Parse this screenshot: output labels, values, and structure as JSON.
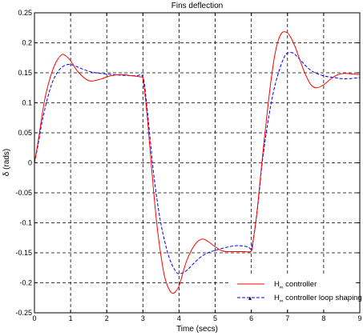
{
  "chart_data": {
    "type": "line",
    "title": "Fins deflection",
    "xlabel": "Time (secs)",
    "ylabel": "δ (rads)",
    "xlim": [
      0,
      9
    ],
    "ylim": [
      -0.25,
      0.25
    ],
    "xticks": [
      "0",
      "1",
      "2",
      "3",
      "4",
      "5",
      "6",
      "7",
      "8",
      "9"
    ],
    "yticks": [
      "-0.25",
      "-0.2",
      "-0.15",
      "-0.1",
      "-0.05",
      "0",
      "0.05",
      "0.1",
      "0.15",
      "0.2",
      "0.25"
    ],
    "grid": true,
    "legend_position": "bottom-right",
    "series": [
      {
        "name": "H∞ controller",
        "legend_main": "H",
        "legend_sub": "∞",
        "legend_rest": " controller",
        "color": "#ff0000",
        "dash": "solid",
        "x": [
          0,
          0.1,
          0.2,
          0.3,
          0.45,
          0.6,
          0.75,
          0.85,
          1.0,
          1.2,
          1.5,
          1.8,
          2.1,
          2.4,
          2.7,
          2.95,
          3.0,
          3.1,
          3.2,
          3.3,
          3.4,
          3.5,
          3.6,
          3.7,
          3.8,
          3.9,
          4.0,
          4.1,
          4.2,
          4.35,
          4.5,
          4.65,
          4.8,
          5.0,
          5.2,
          5.4,
          5.6,
          5.8,
          6.0,
          6.05,
          6.15,
          6.25,
          6.35,
          6.45,
          6.55,
          6.65,
          6.75,
          6.85,
          6.95,
          7.05,
          7.2,
          7.35,
          7.5,
          7.65,
          7.8,
          8.0,
          8.2,
          8.4,
          8.6,
          8.8,
          9.0
        ],
        "y": [
          0.0,
          0.035,
          0.075,
          0.11,
          0.145,
          0.168,
          0.18,
          0.179,
          0.17,
          0.152,
          0.137,
          0.139,
          0.145,
          0.147,
          0.145,
          0.143,
          0.14,
          0.09,
          0.02,
          -0.05,
          -0.11,
          -0.155,
          -0.19,
          -0.208,
          -0.217,
          -0.215,
          -0.205,
          -0.185,
          -0.165,
          -0.145,
          -0.132,
          -0.127,
          -0.131,
          -0.14,
          -0.147,
          -0.148,
          -0.148,
          -0.148,
          -0.147,
          -0.13,
          -0.085,
          -0.025,
          0.035,
          0.09,
          0.14,
          0.18,
          0.205,
          0.217,
          0.218,
          0.213,
          0.195,
          0.17,
          0.147,
          0.13,
          0.125,
          0.13,
          0.14,
          0.147,
          0.149,
          0.148,
          0.147
        ]
      },
      {
        "name": "H∞ controller loop shaping",
        "legend_main": "H",
        "legend_sub": "∞",
        "legend_rest": " controller loop shaping",
        "color": "#0000ff",
        "dash": "dashed",
        "x": [
          0,
          0.1,
          0.2,
          0.35,
          0.5,
          0.65,
          0.8,
          0.95,
          1.1,
          1.3,
          1.6,
          2.0,
          2.4,
          2.8,
          3.0,
          3.1,
          3.2,
          3.3,
          3.45,
          3.6,
          3.75,
          3.9,
          4.0,
          4.2,
          4.4,
          4.6,
          4.8,
          5.0,
          5.3,
          5.6,
          5.9,
          6.0,
          6.1,
          6.2,
          6.3,
          6.45,
          6.6,
          6.75,
          6.9,
          7.0,
          7.15,
          7.3,
          7.5,
          7.7,
          8.0,
          8.3,
          8.6,
          9.0
        ],
        "y": [
          0.0,
          0.03,
          0.065,
          0.105,
          0.135,
          0.152,
          0.161,
          0.164,
          0.162,
          0.157,
          0.151,
          0.148,
          0.146,
          0.145,
          0.143,
          0.1,
          0.04,
          -0.02,
          -0.085,
          -0.13,
          -0.162,
          -0.18,
          -0.185,
          -0.18,
          -0.168,
          -0.157,
          -0.15,
          -0.146,
          -0.141,
          -0.138,
          -0.14,
          -0.142,
          -0.11,
          -0.06,
          0.0,
          0.065,
          0.115,
          0.15,
          0.175,
          0.183,
          0.183,
          0.175,
          0.162,
          0.152,
          0.145,
          0.142,
          0.14,
          0.142
        ]
      }
    ]
  }
}
